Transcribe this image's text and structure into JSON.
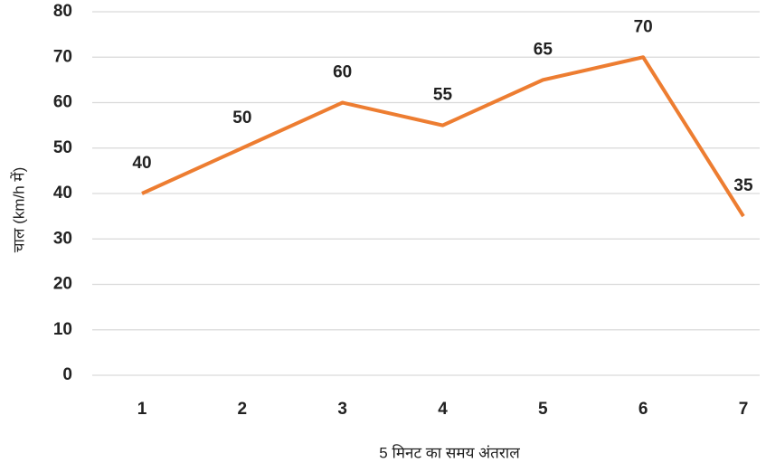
{
  "chart_data": {
    "type": "line",
    "x_label": "5 मिनट का समय अंतराल",
    "y_label": "चाल (km/h में)",
    "categories": [
      "1",
      "2",
      "3",
      "4",
      "5",
      "6",
      "7"
    ],
    "series": [
      {
        "name": "चाल",
        "color": "#ed7d31",
        "values": [
          40,
          50,
          60,
          55,
          65,
          70,
          35
        ]
      }
    ],
    "ylim": [
      0,
      80
    ],
    "yticks": [
      0,
      10,
      20,
      30,
      40,
      50,
      60,
      70,
      80
    ],
    "grid": true,
    "legend": false
  }
}
